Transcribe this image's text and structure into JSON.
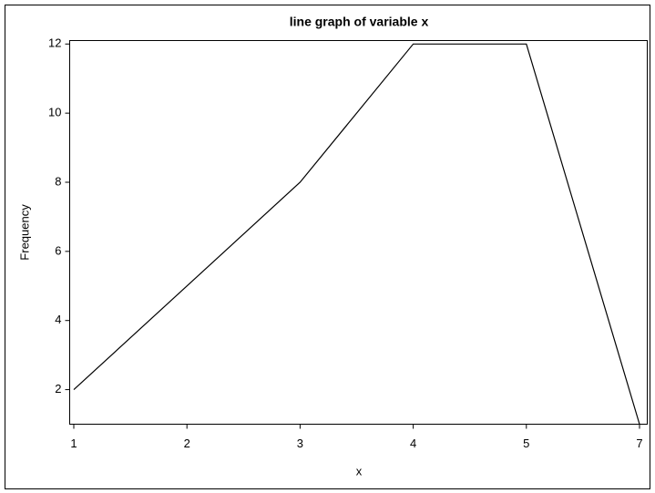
{
  "chart_data": {
    "type": "line",
    "title": "line graph of variable x",
    "xlabel": "x",
    "ylabel": "Frequency",
    "categories": [
      "1",
      "2",
      "3",
      "4",
      "5",
      "7"
    ],
    "series": [
      {
        "name": "Frequency",
        "color": "#000000",
        "values": [
          2,
          5,
          8,
          12,
          12,
          1
        ]
      }
    ],
    "ylim": [
      1,
      12.1
    ],
    "yticks": [
      2,
      4,
      6,
      8,
      10,
      12
    ],
    "grid": false
  }
}
